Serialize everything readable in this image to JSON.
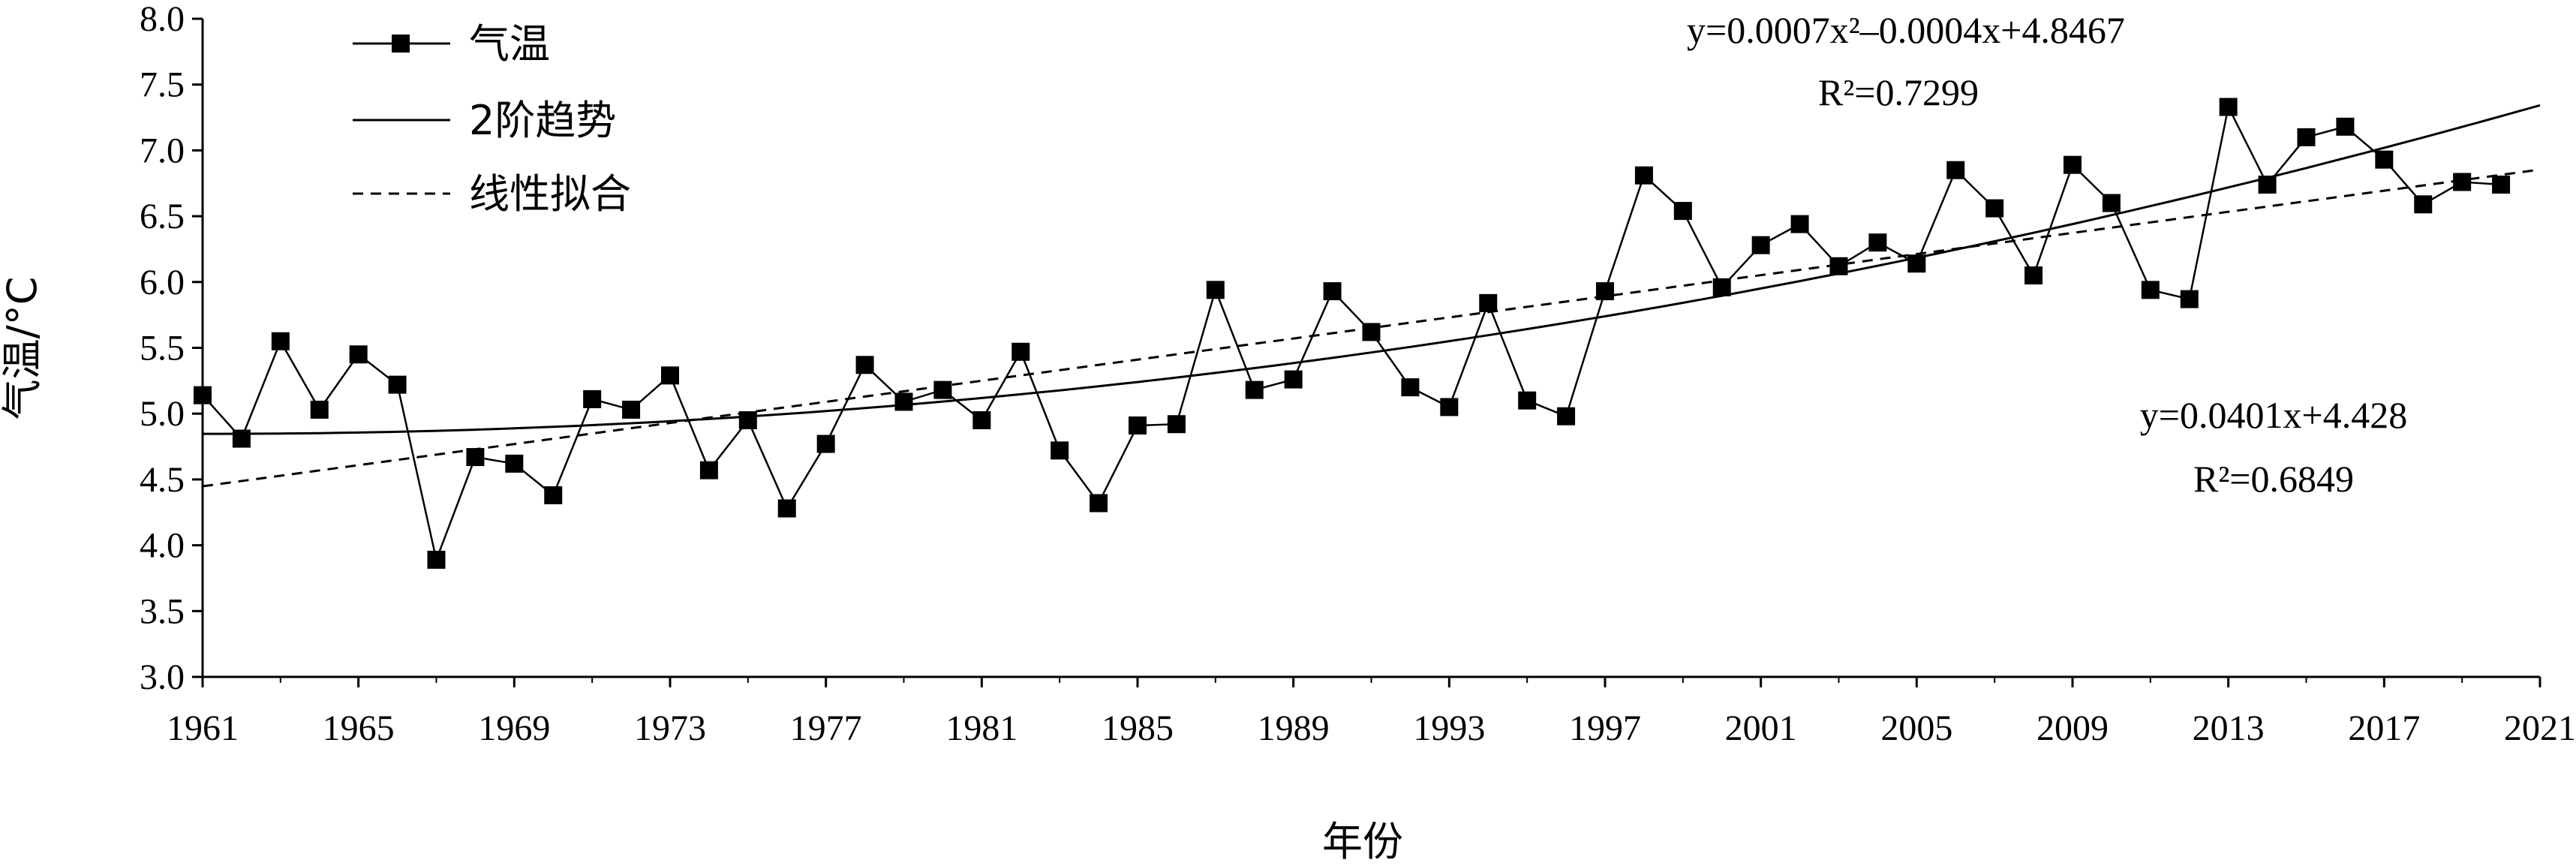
{
  "chart_data": {
    "type": "line",
    "title": "",
    "xlabel": "年份",
    "ylabel": "气温/°C",
    "xlim": [
      1961,
      2021
    ],
    "ylim": [
      3.0,
      8.0
    ],
    "x_ticks": [
      "1961",
      "1965",
      "1969",
      "1973",
      "1977",
      "1981",
      "1985",
      "1989",
      "1993",
      "1997",
      "2001",
      "2005",
      "2009",
      "2013",
      "2017",
      "2021"
    ],
    "y_ticks": [
      "3.0",
      "3.5",
      "4.0",
      "4.5",
      "5.0",
      "5.5",
      "6.0",
      "6.5",
      "7.0",
      "7.5",
      "8.0"
    ],
    "legend_position": "top-left",
    "grid": false,
    "series": [
      {
        "name": "气温",
        "style": "line-square-markers",
        "x": [
          1961,
          1962,
          1963,
          1964,
          1965,
          1966,
          1967,
          1968,
          1969,
          1970,
          1971,
          1972,
          1973,
          1974,
          1975,
          1976,
          1977,
          1978,
          1979,
          1980,
          1981,
          1982,
          1983,
          1984,
          1985,
          1986,
          1987,
          1988,
          1989,
          1990,
          1991,
          1992,
          1993,
          1994,
          1995,
          1996,
          1997,
          1998,
          1999,
          2000,
          2001,
          2002,
          2003,
          2004,
          2005,
          2006,
          2007,
          2008,
          2009,
          2010,
          2011,
          2012,
          2013,
          2014,
          2015,
          2016,
          2017,
          2018,
          2019,
          2020
        ],
        "values": [
          5.14,
          4.81,
          5.55,
          5.03,
          5.45,
          5.22,
          3.89,
          4.67,
          4.62,
          4.38,
          5.11,
          5.03,
          5.29,
          4.57,
          4.95,
          4.28,
          4.77,
          5.37,
          5.09,
          5.18,
          4.95,
          5.47,
          4.72,
          4.32,
          4.91,
          4.92,
          5.94,
          5.18,
          5.26,
          5.93,
          5.62,
          5.2,
          5.05,
          5.84,
          5.1,
          4.98,
          5.93,
          6.81,
          6.54,
          5.96,
          6.28,
          6.44,
          6.12,
          6.3,
          6.14,
          6.85,
          6.56,
          6.05,
          6.89,
          6.6,
          5.94,
          5.87,
          7.33,
          6.74,
          7.1,
          7.18,
          6.93,
          6.59,
          6.76,
          6.74
        ]
      },
      {
        "name": "2阶趋势",
        "style": "solid"
      },
      {
        "name": "线性拟合",
        "style": "dashed"
      }
    ],
    "annotations": {
      "poly": {
        "equation": "y=0.0007x²–0.0004x+4.8467",
        "r2": "R²=0.7299",
        "coefficients": [
          0.0007,
          -0.0004,
          4.8467
        ]
      },
      "linear": {
        "equation": "y=0.0401x+4.428",
        "r2": "R²=0.6849",
        "coefficients": [
          0.0401,
          4.428
        ]
      }
    },
    "colors": {
      "line": "#000000",
      "background": "#ffffff"
    }
  }
}
